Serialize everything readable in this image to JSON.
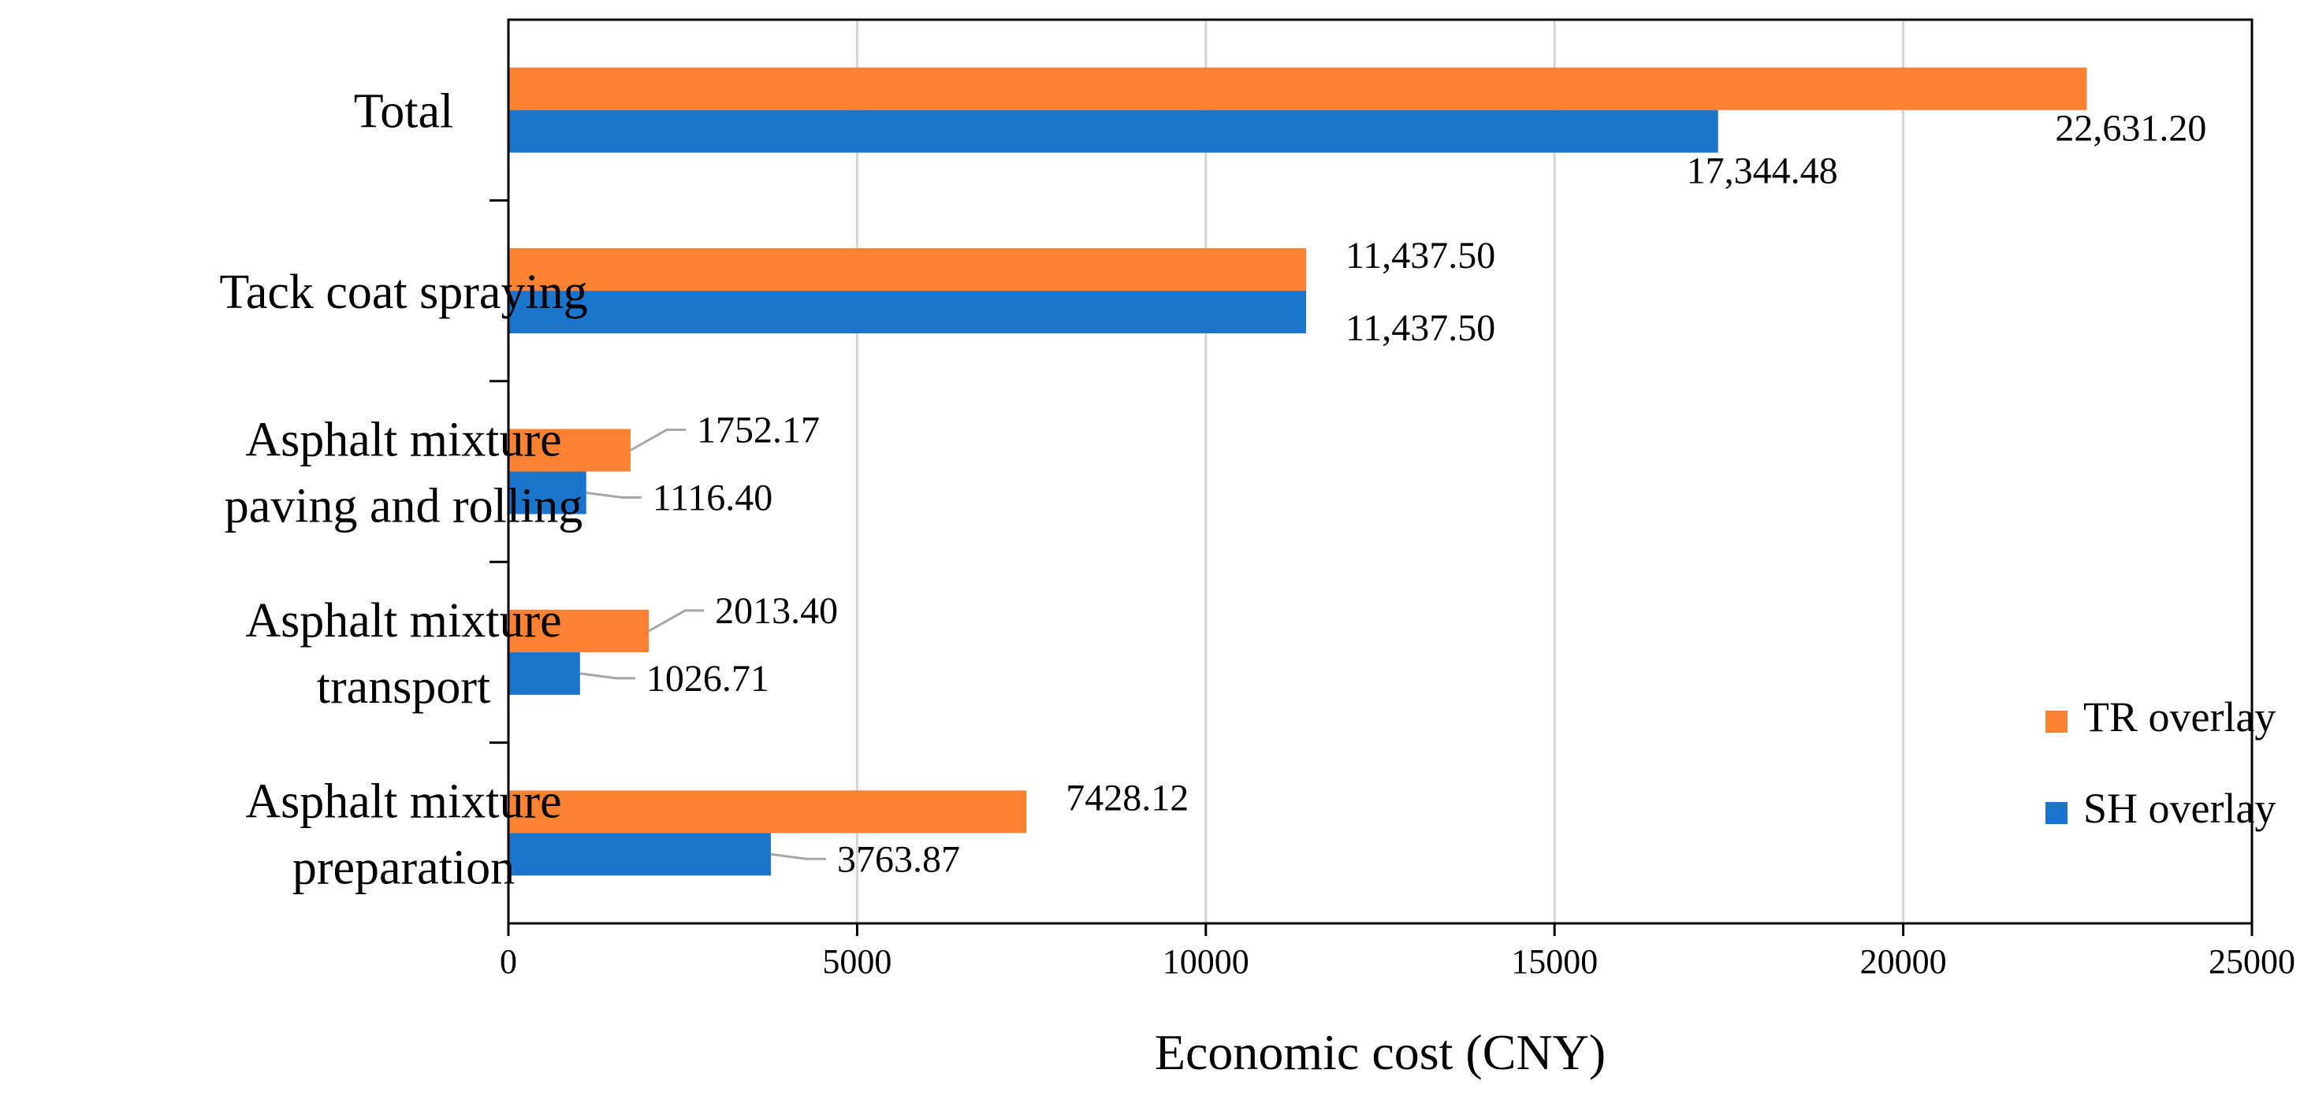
{
  "chart_data": {
    "type": "bar",
    "orientation": "horizontal",
    "title": "",
    "xlabel": "Economic cost (CNY)",
    "ylabel": "",
    "xlim": [
      0,
      25000
    ],
    "x_ticks": [
      0,
      5000,
      10000,
      15000,
      20000,
      25000
    ],
    "x_tick_labels": [
      "0",
      "5000",
      "10000",
      "15000",
      "20000",
      "25000"
    ],
    "grid": "vertical",
    "categories": [
      {
        "lines": [
          "Total"
        ]
      },
      {
        "lines": [
          "Tack coat spraying"
        ]
      },
      {
        "lines": [
          "Asphalt mixture",
          "paving and rolling"
        ]
      },
      {
        "lines": [
          "Asphalt mixture",
          "transport"
        ]
      },
      {
        "lines": [
          "Asphalt mixture",
          "preparation"
        ]
      }
    ],
    "series": [
      {
        "name": "TR overlay",
        "color": "#fb8232",
        "values": [
          22631.2,
          11437.5,
          1752.17,
          2013.4,
          7428.12
        ],
        "labels": [
          "22,631.20",
          "11,437.50",
          "1752.17",
          "2013.40",
          "7428.12"
        ]
      },
      {
        "name": "SH overlay",
        "color": "#1b75cc",
        "values": [
          17344.48,
          11437.5,
          1116.4,
          1026.71,
          3763.87
        ],
        "labels": [
          "17,344.48",
          "11,437.50",
          "1116.40",
          "1026.71",
          "3763.87"
        ]
      }
    ],
    "legend": {
      "placement": "bottom-right",
      "entries": [
        "TR overlay",
        "SH overlay"
      ]
    },
    "colors": {
      "axis": "#000000",
      "grid": "#d4d4d4",
      "leader": "#a6a6a6",
      "text": "#000000"
    }
  }
}
